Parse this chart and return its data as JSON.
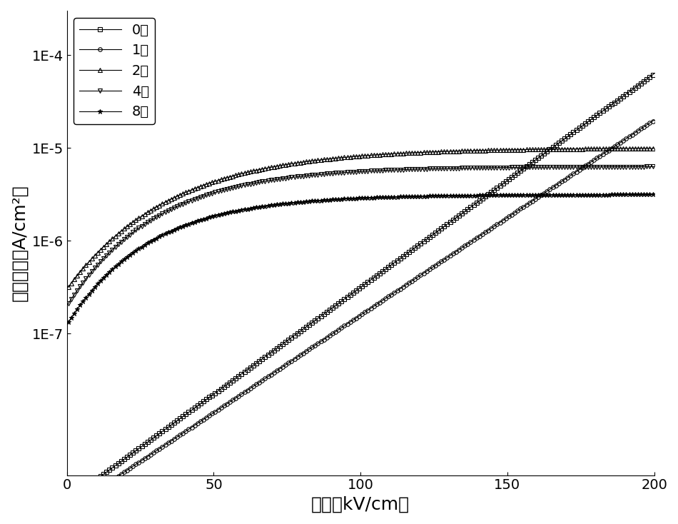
{
  "title": "",
  "xlabel": "电场（kV/cm）",
  "ylabel": "电流密度（A/cm²）",
  "xlim": [
    0,
    200
  ],
  "ylim": [
    3e-09,
    0.0003
  ],
  "xticks": [
    0,
    50,
    100,
    150,
    200
  ],
  "ytick_labels": [
    "1E-7",
    "1E-6",
    "1E-5",
    "1E-4"
  ],
  "ytick_values": [
    1e-07,
    1e-06,
    1e-05,
    0.0001
  ],
  "series": [
    {
      "label": "0次",
      "marker": "s"
    },
    {
      "label": "1次",
      "marker": "o"
    },
    {
      "label": "2次",
      "marker": "^"
    },
    {
      "label": "4次",
      "marker": "v"
    },
    {
      "label": "8次",
      "marker": "*"
    }
  ],
  "legend_loc": "upper left",
  "background_color": "#ffffff",
  "font_size_label": 18,
  "font_size_tick": 14,
  "font_size_legend": 14
}
